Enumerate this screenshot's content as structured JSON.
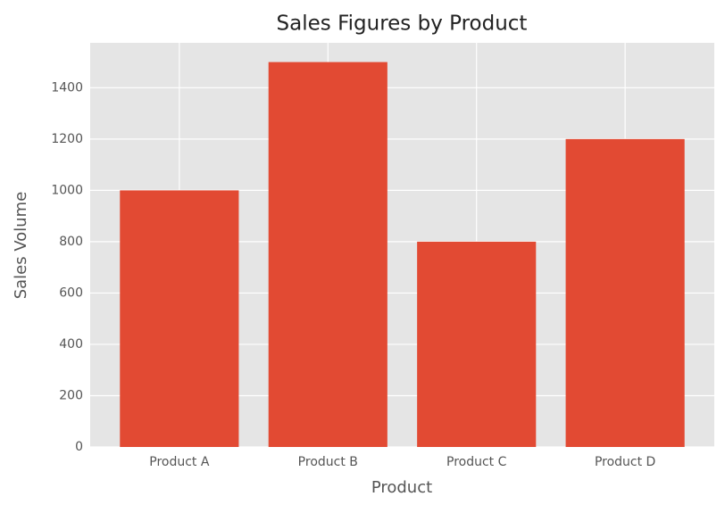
{
  "chart_data": {
    "type": "bar",
    "title": "Sales Figures by Product",
    "xlabel": "Product",
    "ylabel": "Sales Volume",
    "categories": [
      "Product A",
      "Product B",
      "Product C",
      "Product D"
    ],
    "values": [
      1000,
      1500,
      800,
      1200
    ],
    "color": "#E24A33",
    "ylim": [
      0,
      1575
    ],
    "yticks": [
      0,
      200,
      400,
      600,
      800,
      1000,
      1200,
      1400
    ],
    "grid": true
  }
}
